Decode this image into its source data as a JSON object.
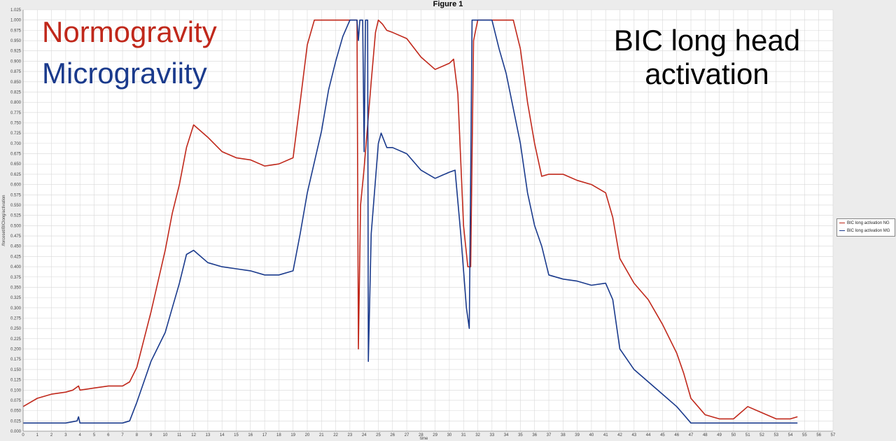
{
  "figure_title": "Figure 1",
  "annotations": {
    "normogravity": "Normogravity",
    "microgravity": "Micrograviity",
    "bic": "BIC long head activation"
  },
  "colors": {
    "ng": "#c0281b",
    "mg": "#1a3a8c",
    "bic": "#000000"
  },
  "chart_data": {
    "type": "line",
    "xlabel": "time",
    "ylabel": "/forceset/BIClong/activation",
    "xlim": [
      0,
      57
    ],
    "ylim": [
      0.0,
      1.025
    ],
    "xticks": [
      0,
      1,
      2,
      3,
      4,
      5,
      6,
      7,
      8,
      9,
      10,
      11,
      12,
      13,
      14,
      15,
      16,
      17,
      18,
      19,
      20,
      21,
      22,
      23,
      24,
      25,
      26,
      27,
      28,
      29,
      30,
      31,
      32,
      33,
      34,
      35,
      36,
      37,
      38,
      39,
      40,
      41,
      42,
      43,
      44,
      45,
      46,
      47,
      48,
      49,
      50,
      51,
      52,
      53,
      54,
      55,
      56,
      57
    ],
    "yticks": [
      0.0,
      0.025,
      0.05,
      0.075,
      0.1,
      0.125,
      0.15,
      0.175,
      0.2,
      0.225,
      0.25,
      0.275,
      0.3,
      0.325,
      0.35,
      0.375,
      0.4,
      0.425,
      0.45,
      0.475,
      0.5,
      0.525,
      0.55,
      0.575,
      0.6,
      0.625,
      0.65,
      0.675,
      0.7,
      0.725,
      0.75,
      0.775,
      0.8,
      0.825,
      0.85,
      0.875,
      0.9,
      0.925,
      0.95,
      0.975,
      1.0,
      1.025
    ],
    "ytick_labels": [
      "0.000",
      "0.025",
      "0.050",
      "0.075",
      "0.100",
      "0.125",
      "0.150",
      "0.175",
      "0.200",
      "0.225",
      "0.250",
      "0.275",
      "0.300",
      "0.325",
      "0.350",
      "0.375",
      "0.400",
      "0.425",
      "0.450",
      "0.475",
      "0.500",
      "0.525",
      "0.550",
      "0.575",
      "0.600",
      "0.625",
      "0.650",
      "0.675",
      "0.700",
      "0.725",
      "0.750",
      "0.775",
      "0.800",
      "0.825",
      "0.850",
      "0.875",
      "0.900",
      "0.925",
      "0.950",
      "0.975",
      "1.000",
      "1.025"
    ],
    "grid": true,
    "legend_position": "right",
    "series": [
      {
        "name": "BIC long activation NG",
        "color": "#c0281b",
        "points": [
          [
            0,
            0.06
          ],
          [
            0.5,
            0.07
          ],
          [
            1,
            0.08
          ],
          [
            2,
            0.09
          ],
          [
            3,
            0.095
          ],
          [
            3.5,
            0.1
          ],
          [
            3.9,
            0.11
          ],
          [
            4,
            0.1
          ],
          [
            5,
            0.105
          ],
          [
            6,
            0.11
          ],
          [
            7,
            0.11
          ],
          [
            7.5,
            0.12
          ],
          [
            8,
            0.155
          ],
          [
            9,
            0.29
          ],
          [
            10,
            0.44
          ],
          [
            10.5,
            0.53
          ],
          [
            11,
            0.6
          ],
          [
            11.5,
            0.69
          ],
          [
            12,
            0.745
          ],
          [
            13,
            0.715
          ],
          [
            14,
            0.68
          ],
          [
            15,
            0.665
          ],
          [
            16,
            0.66
          ],
          [
            17,
            0.645
          ],
          [
            18,
            0.65
          ],
          [
            19,
            0.665
          ],
          [
            19.5,
            0.8
          ],
          [
            20,
            0.94
          ],
          [
            20.5,
            1.0
          ],
          [
            21,
            1.0
          ],
          [
            22,
            1.0
          ],
          [
            23,
            1.0
          ],
          [
            23.5,
            1.0
          ],
          [
            23.6,
            0.2
          ],
          [
            23.75,
            0.55
          ],
          [
            24,
            0.64
          ],
          [
            24.5,
            0.85
          ],
          [
            24.8,
            0.97
          ],
          [
            25,
            1.0
          ],
          [
            25.3,
            0.99
          ],
          [
            25.6,
            0.975
          ],
          [
            26,
            0.97
          ],
          [
            27,
            0.955
          ],
          [
            28,
            0.91
          ],
          [
            29,
            0.88
          ],
          [
            30,
            0.895
          ],
          [
            30.3,
            0.905
          ],
          [
            30.6,
            0.82
          ],
          [
            31,
            0.5
          ],
          [
            31.3,
            0.4
          ],
          [
            31.5,
            0.4
          ],
          [
            31.7,
            0.95
          ],
          [
            32,
            1.0
          ],
          [
            33,
            1.0
          ],
          [
            34,
            1.0
          ],
          [
            34.5,
            1.0
          ],
          [
            35,
            0.93
          ],
          [
            35.5,
            0.8
          ],
          [
            36,
            0.7
          ],
          [
            36.5,
            0.62
          ],
          [
            37,
            0.625
          ],
          [
            38,
            0.625
          ],
          [
            39,
            0.61
          ],
          [
            40,
            0.6
          ],
          [
            41,
            0.58
          ],
          [
            41.5,
            0.52
          ],
          [
            42,
            0.42
          ],
          [
            43,
            0.36
          ],
          [
            44,
            0.32
          ],
          [
            45,
            0.26
          ],
          [
            46,
            0.19
          ],
          [
            46.5,
            0.14
          ],
          [
            47,
            0.08
          ],
          [
            47.5,
            0.06
          ],
          [
            48,
            0.04
          ],
          [
            49,
            0.03
          ],
          [
            50,
            0.03
          ],
          [
            51,
            0.06
          ],
          [
            52,
            0.045
          ],
          [
            53,
            0.03
          ],
          [
            54,
            0.03
          ],
          [
            54.5,
            0.035
          ]
        ]
      },
      {
        "name": "BIC long activation MG",
        "color": "#1a3a8c",
        "points": [
          [
            0,
            0.02
          ],
          [
            1,
            0.02
          ],
          [
            2,
            0.02
          ],
          [
            3,
            0.02
          ],
          [
            3.8,
            0.025
          ],
          [
            3.9,
            0.035
          ],
          [
            4,
            0.02
          ],
          [
            5,
            0.02
          ],
          [
            6,
            0.02
          ],
          [
            7,
            0.02
          ],
          [
            7.5,
            0.025
          ],
          [
            8,
            0.07
          ],
          [
            9,
            0.17
          ],
          [
            10,
            0.24
          ],
          [
            10.5,
            0.3
          ],
          [
            11,
            0.36
          ],
          [
            11.5,
            0.43
          ],
          [
            12,
            0.44
          ],
          [
            13,
            0.41
          ],
          [
            14,
            0.4
          ],
          [
            15,
            0.395
          ],
          [
            16,
            0.39
          ],
          [
            17,
            0.38
          ],
          [
            18,
            0.38
          ],
          [
            19,
            0.39
          ],
          [
            19.5,
            0.48
          ],
          [
            20,
            0.58
          ],
          [
            21,
            0.73
          ],
          [
            21.5,
            0.83
          ],
          [
            22,
            0.9
          ],
          [
            22.5,
            0.96
          ],
          [
            23,
            1.0
          ],
          [
            23.5,
            1.0
          ],
          [
            23.6,
            0.95
          ],
          [
            23.7,
            1.0
          ],
          [
            23.9,
            1.0
          ],
          [
            24,
            0.68
          ],
          [
            24.1,
            1.0
          ],
          [
            24.25,
            1.0
          ],
          [
            24.3,
            0.17
          ],
          [
            24.5,
            0.48
          ],
          [
            25,
            0.7
          ],
          [
            25.2,
            0.725
          ],
          [
            25.6,
            0.69
          ],
          [
            26,
            0.69
          ],
          [
            27,
            0.675
          ],
          [
            28,
            0.635
          ],
          [
            29,
            0.615
          ],
          [
            30,
            0.63
          ],
          [
            30.4,
            0.635
          ],
          [
            30.8,
            0.48
          ],
          [
            31.2,
            0.3
          ],
          [
            31.4,
            0.25
          ],
          [
            31.6,
            1.0
          ],
          [
            32,
            1.0
          ],
          [
            33,
            1.0
          ],
          [
            33.5,
            0.93
          ],
          [
            34,
            0.87
          ],
          [
            35,
            0.7
          ],
          [
            35.5,
            0.58
          ],
          [
            36,
            0.5
          ],
          [
            36.5,
            0.45
          ],
          [
            37,
            0.38
          ],
          [
            38,
            0.37
          ],
          [
            39,
            0.365
          ],
          [
            40,
            0.355
          ],
          [
            41,
            0.36
          ],
          [
            41.5,
            0.32
          ],
          [
            42,
            0.2
          ],
          [
            43,
            0.15
          ],
          [
            44,
            0.12
          ],
          [
            45,
            0.09
          ],
          [
            46,
            0.06
          ],
          [
            46.5,
            0.04
          ],
          [
            47,
            0.02
          ],
          [
            48,
            0.02
          ],
          [
            49,
            0.02
          ],
          [
            50,
            0.02
          ],
          [
            51,
            0.02
          ],
          [
            52,
            0.02
          ],
          [
            53,
            0.02
          ],
          [
            54,
            0.02
          ],
          [
            54.5,
            0.02
          ]
        ]
      }
    ]
  }
}
